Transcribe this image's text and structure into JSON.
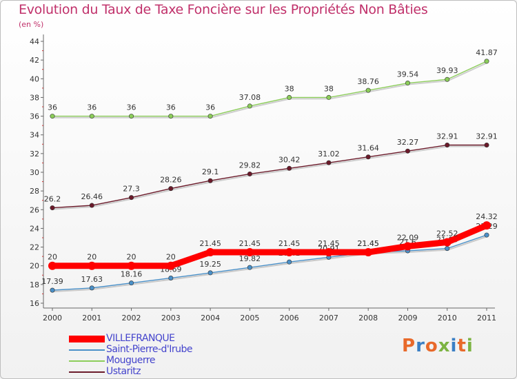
{
  "title": "Evolution du Taux de Taxe Foncière sur les Propriétés Non Bâties",
  "subtitle": "(en %)",
  "logo": "Proxiti",
  "logo_colors": [
    "#e8692a",
    "#3b7fc4",
    "#e8692a",
    "#7cb342",
    "#3b7fc4",
    "#e8692a",
    "#7cb342"
  ],
  "chart_data": {
    "type": "line",
    "title": "Evolution du Taux de Taxe Foncière sur les Propriétés Non Bâties",
    "ylabel": "(en %)",
    "xlabel": "",
    "x": [
      "2000",
      "2001",
      "2002",
      "2003",
      "2004",
      "2005",
      "2006",
      "2007",
      "2008",
      "2009",
      "2010",
      "2011"
    ],
    "ylim": [
      16,
      44
    ],
    "yticks": [
      16,
      18,
      20,
      22,
      24,
      26,
      28,
      30,
      32,
      34,
      36,
      38,
      40,
      42,
      44
    ],
    "grid": false,
    "legend_position": "bottom-left",
    "series": [
      {
        "name": "Mouguerre",
        "color": "#8ccd5a",
        "values": [
          36,
          36,
          36,
          36,
          36,
          37.08,
          38,
          38,
          38.76,
          39.54,
          39.93,
          41.87
        ],
        "labels": [
          "36",
          "36",
          "36",
          "36",
          "36",
          "37.08",
          "38",
          "38",
          "38.76",
          "39.54",
          "39.93",
          "41.87"
        ]
      },
      {
        "name": "Ustaritz",
        "color": "#6b1a2a",
        "values": [
          26.2,
          26.46,
          27.3,
          28.26,
          29.1,
          29.82,
          30.42,
          31.02,
          31.64,
          32.27,
          32.91,
          32.91
        ],
        "labels": [
          "26.2",
          "26.46",
          "27.3",
          "28.26",
          "29.1",
          "29.82",
          "30.42",
          "31.02",
          "31.64",
          "32.27",
          "32.91",
          "32.91"
        ]
      },
      {
        "name": "Saint-Pierre-d'Irube",
        "color": "#4a90c8",
        "values": [
          17.39,
          17.63,
          18.16,
          18.69,
          19.25,
          19.82,
          20.41,
          20.91,
          21.45,
          21.6,
          21.85,
          23.29
        ],
        "labels": [
          "17.39",
          "17.63",
          "18.16",
          "18.69",
          "19.25",
          "19.82",
          "20.41",
          "20.91",
          "21.45",
          "21.6",
          "21.85",
          "23.29"
        ]
      },
      {
        "name": "VILLEFRANQUE",
        "color": "#ff0000",
        "values": [
          20,
          20,
          20,
          20,
          21.45,
          21.45,
          21.45,
          21.45,
          21.45,
          22.09,
          22.52,
          24.32
        ],
        "labels": [
          "20",
          "20",
          "20",
          "20",
          "21.45",
          "21.45",
          "21.45",
          "21.45",
          "21.45",
          "22.09",
          "22.52",
          "24.32"
        ]
      }
    ],
    "legend": [
      "VILLEFRANQUE",
      "Saint-Pierre-d'Irube",
      "Mouguerre",
      "Ustaritz"
    ]
  }
}
